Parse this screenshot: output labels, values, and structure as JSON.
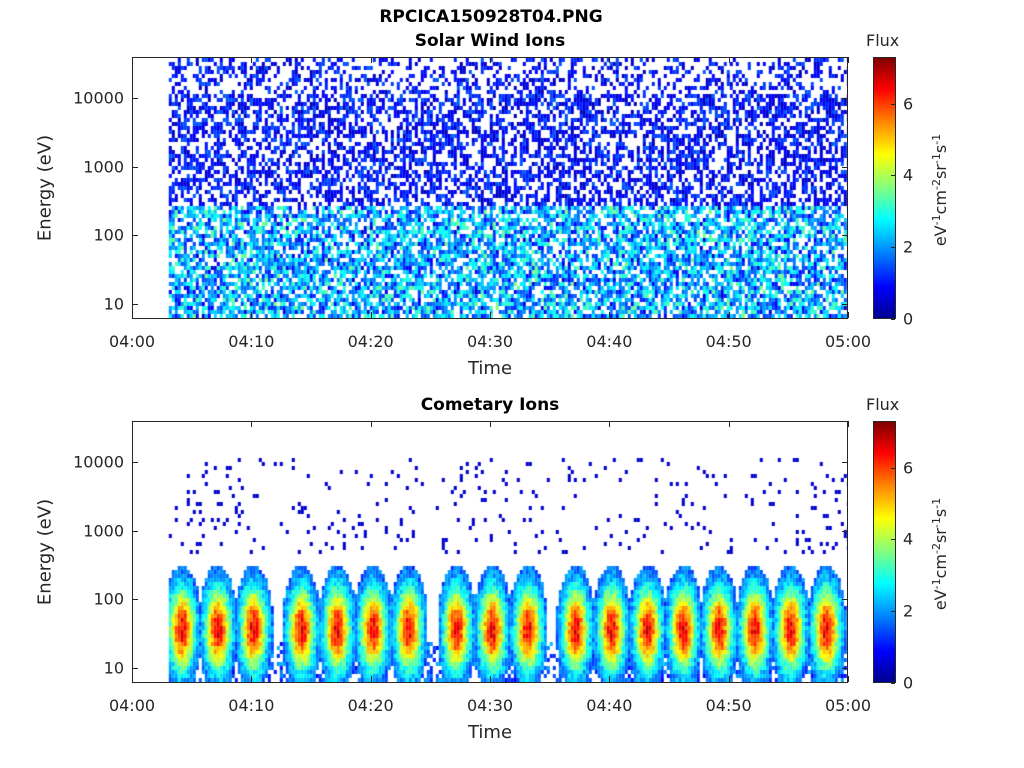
{
  "figure_title": "RPCICA150928T04.PNG",
  "colorbar": {
    "title": "Flux",
    "ticks": [
      "0",
      "2",
      "4",
      "6"
    ],
    "unit_base": [
      "eV",
      "cm",
      "sr",
      "s"
    ],
    "unit_exp": [
      "-1",
      "-2",
      "-1",
      "-1"
    ],
    "range": [
      0,
      7.3
    ],
    "colormap": "jet"
  },
  "chart_data": [
    {
      "type": "heatmap",
      "title": "Solar Wind Ions",
      "xlabel": "Time",
      "ylabel": "Energy (eV)",
      "xticks": [
        "04:00",
        "04:10",
        "04:20",
        "04:30",
        "04:40",
        "04:50",
        "05:00"
      ],
      "yticks": [
        "10",
        "100",
        "1000",
        "10000"
      ],
      "ylog": true,
      "ylim": [
        6,
        40000
      ],
      "xlim": [
        "04:00",
        "05:00"
      ],
      "data_start": "04:03",
      "z_range": [
        0,
        7.3
      ],
      "description_values": {
        "background_flux_high_energy": 1,
        "peak_flux_low_energy": 3.5
      }
    },
    {
      "type": "heatmap",
      "title": "Cometary Ions",
      "xlabel": "Time",
      "ylabel": "Energy (eV)",
      "xticks": [
        "04:00",
        "04:10",
        "04:20",
        "04:30",
        "04:40",
        "04:50",
        "05:00"
      ],
      "yticks": [
        "10",
        "100",
        "1000",
        "10000"
      ],
      "ylog": true,
      "ylim": [
        6,
        40000
      ],
      "xlim": [
        "04:00",
        "05:00"
      ],
      "data_start": "04:03",
      "z_range": [
        0,
        7.3
      ],
      "burst_times": [
        "04:04",
        "04:07",
        "04:10",
        "04:14",
        "04:17",
        "04:20",
        "04:23",
        "04:27",
        "04:30",
        "04:33",
        "04:37",
        "04:40",
        "04:43",
        "04:46",
        "04:49",
        "04:52",
        "04:55",
        "04:58"
      ],
      "burst_peak_energy": 40,
      "burst_peak_flux": 6.5
    }
  ]
}
